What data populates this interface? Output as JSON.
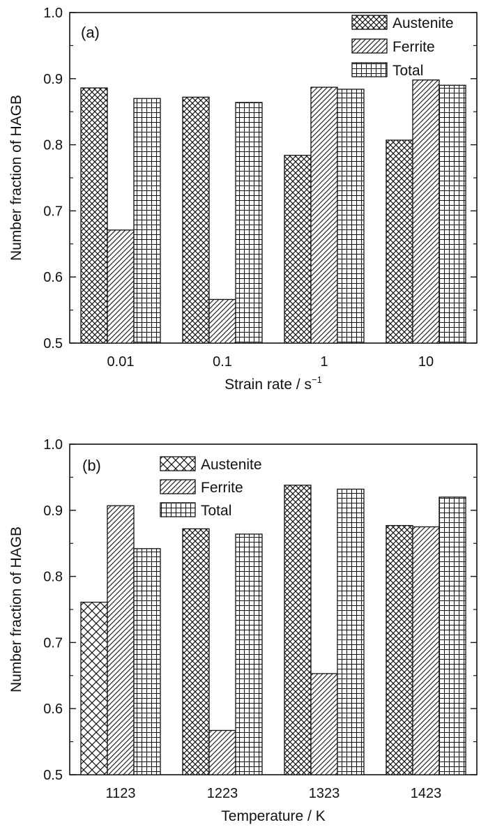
{
  "chart_data": [
    {
      "type": "bar",
      "panel_label": "(a)",
      "xlabel": "Strain rate / s",
      "xlabel_superscript": "−1",
      "ylabel": "Number fraction of HAGB",
      "ylim": [
        0.5,
        1.0
      ],
      "yticks": [
        "0.5",
        "0.6",
        "0.7",
        "0.8",
        "0.9",
        "1.0"
      ],
      "categories": [
        "0.01",
        "0.1",
        "1",
        "10"
      ],
      "legend_position": "top-right",
      "grid": false,
      "series": [
        {
          "name": "Austenite",
          "pattern": "crosshatch",
          "values": [
            0.886,
            0.872,
            0.784,
            0.807
          ]
        },
        {
          "name": "Ferrite",
          "pattern": "diagonal",
          "values": [
            0.671,
            0.566,
            0.887,
            0.898
          ]
        },
        {
          "name": "Total",
          "pattern": "grid",
          "values": [
            0.87,
            0.864,
            0.884,
            0.89
          ]
        }
      ]
    },
    {
      "type": "bar",
      "panel_label": "(b)",
      "xlabel": "Temperature / K",
      "ylabel": "Number fraction of HAGB",
      "ylim": [
        0.5,
        1.0
      ],
      "yticks": [
        "0.5",
        "0.6",
        "0.7",
        "0.8",
        "0.9",
        "1.0"
      ],
      "categories": [
        "1123",
        "1223",
        "1323",
        "1423"
      ],
      "legend_position": "top-left",
      "grid": false,
      "series": [
        {
          "name": "Austenite",
          "pattern": "crosshatch",
          "values": [
            0.761,
            0.872,
            0.938,
            0.877
          ]
        },
        {
          "name": "Ferrite",
          "pattern": "diagonal",
          "values": [
            0.907,
            0.567,
            0.653,
            0.875
          ]
        },
        {
          "name": "Total",
          "pattern": "grid",
          "values": [
            0.842,
            0.864,
            0.932,
            0.92
          ]
        }
      ]
    }
  ]
}
